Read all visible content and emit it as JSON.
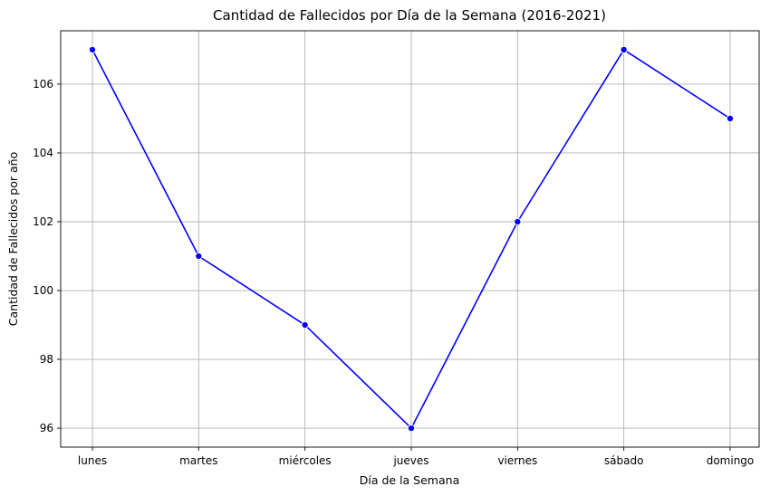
{
  "chart_data": {
    "type": "line",
    "title": "Cantidad de Fallecidos por Día de la Semana (2016-2021)",
    "xlabel": "Día de la Semana",
    "ylabel": "Cantidad de Fallecidos por año",
    "categories": [
      "lunes",
      "martes",
      "miércoles",
      "jueves",
      "viernes",
      "sábado",
      "domingo"
    ],
    "series": [
      {
        "values": [
          107,
          101,
          99,
          96,
          102,
          107,
          105
        ],
        "color": "#0000ff",
        "marker": "circle"
      }
    ],
    "ylim": [
      95.45,
      107.55
    ],
    "yticks": [
      96,
      98,
      100,
      102,
      104,
      106
    ],
    "grid": true,
    "legend": "none"
  }
}
